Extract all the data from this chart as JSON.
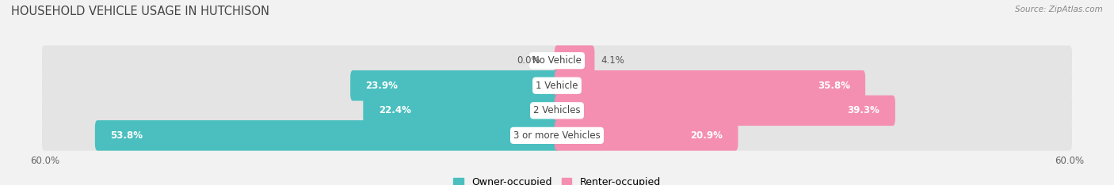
{
  "title": "HOUSEHOLD VEHICLE USAGE IN HUTCHISON",
  "source": "Source: ZipAtlas.com",
  "categories": [
    "No Vehicle",
    "1 Vehicle",
    "2 Vehicles",
    "3 or more Vehicles"
  ],
  "owner_values": [
    0.0,
    23.9,
    22.4,
    53.8
  ],
  "renter_values": [
    4.1,
    35.8,
    39.3,
    20.9
  ],
  "owner_color": "#4bbfbf",
  "renter_color": "#f48fb1",
  "owner_label": "Owner-occupied",
  "renter_label": "Renter-occupied",
  "axis_max": 60.0,
  "bar_height": 0.62,
  "background_color": "#f2f2f2",
  "bar_bg_color": "#e2e2e2",
  "title_fontsize": 10.5,
  "label_fontsize": 8.5,
  "value_fontsize": 8.5,
  "tick_fontsize": 8.5,
  "legend_fontsize": 9.0
}
